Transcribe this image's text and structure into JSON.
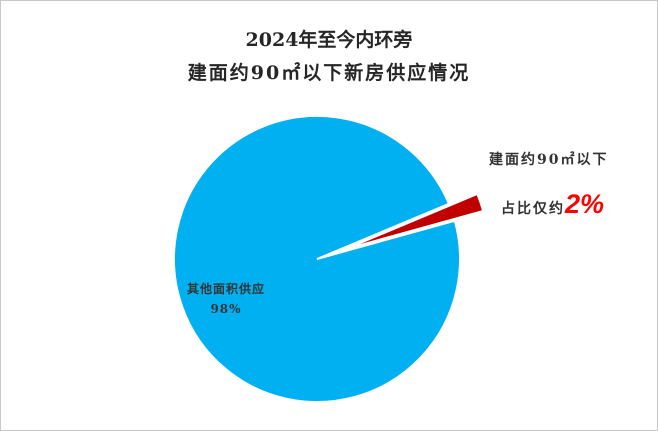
{
  "chart_data": {
    "type": "pie",
    "title_line1": "2024年至今内环旁",
    "title_line2": "建面约90㎡以下新房供应情况",
    "slices": [
      {
        "name": "其他面积供应",
        "value": 98,
        "label": "98%",
        "color": "#00b0f0"
      },
      {
        "name": "建面约90㎡以下",
        "value": 2,
        "prefix": "占比仅约",
        "label": "2%",
        "color": "#c00000",
        "exploded": true
      }
    ]
  }
}
